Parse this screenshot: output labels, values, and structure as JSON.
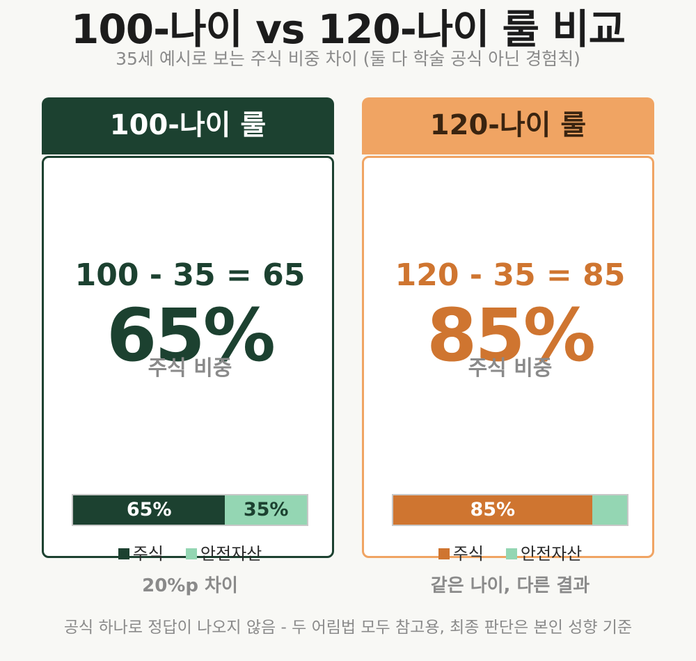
{
  "title": "100-나이 vs 120-나이 룰 비교",
  "subtitle": "35세 예시로 보는 주식 비중 차이 (둘 다 학술 공식 아닌 경험칙)",
  "colors": {
    "left_accent": "#1c4130",
    "right_accent": "#cf7530",
    "right_header": "#f0a463",
    "safe_asset": "#94d6b3"
  },
  "panels": [
    {
      "header": "100-나이 룰",
      "equation": "100 - 35 = 65",
      "big_percent": "65%",
      "caption": "주식 비중",
      "bar": {
        "stock_fraction": 0.65,
        "stock_label": "65%",
        "safe_fraction": 0.35,
        "safe_label": "35%"
      },
      "legend": {
        "stock": "주식",
        "safe": "안전자산"
      },
      "footnote": "20%p 차이"
    },
    {
      "header": "120-나이 룰",
      "equation": "120 - 35 = 85",
      "big_percent": "85%",
      "caption": "주식 비중",
      "bar": {
        "stock_fraction": 0.85,
        "stock_label": "85%",
        "safe_fraction": 0.15,
        "safe_label": ""
      },
      "legend": {
        "stock": "주식",
        "safe": "안전자산"
      },
      "footnote": "같은 나이, 다른 결과"
    }
  ],
  "footer": "공식 하나로 정답이 나오지 않음 - 두 어림법 모두 참고용, 최종 판단은 본인 성향 기준"
}
